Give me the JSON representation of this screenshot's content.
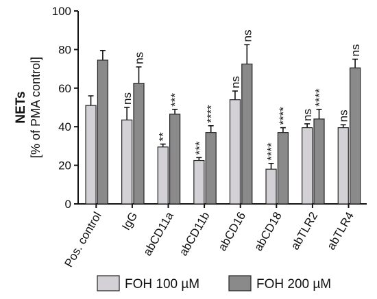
{
  "chart_data": {
    "type": "bar",
    "title": "",
    "ylabel_main": "NETs",
    "ylabel_sub": "[% of PMA control]",
    "ylim": [
      0,
      100
    ],
    "yticks": [
      0,
      20,
      40,
      60,
      80,
      100
    ],
    "categories": [
      "Pos. control",
      "IgG",
      "abCD11a",
      "abCD11b",
      "abCD16",
      "abCD18",
      "abTLR2",
      "abTLR4"
    ],
    "series": [
      {
        "name": "FOH 100 µM",
        "color": "#d3d0d6",
        "values": [
          51,
          43.5,
          29.5,
          22.5,
          54,
          18,
          39.5,
          39.5
        ],
        "errors": [
          5,
          6.5,
          1.5,
          1.5,
          4.5,
          3,
          2,
          1.5
        ],
        "significance": [
          "",
          "ns",
          "**",
          "***",
          "ns",
          "****",
          "ns",
          "ns"
        ]
      },
      {
        "name": "FOH 200 µM",
        "color": "#8a8a8a",
        "values": [
          74.5,
          62.5,
          46.5,
          37,
          72.5,
          37,
          44,
          70.5
        ],
        "errors": [
          5,
          8.5,
          2.5,
          3.5,
          10,
          2.5,
          5,
          4.5
        ],
        "significance": [
          "",
          "ns",
          "***",
          "****",
          "ns",
          "****",
          "****",
          "ns"
        ]
      }
    ],
    "legend_position": "bottom"
  }
}
